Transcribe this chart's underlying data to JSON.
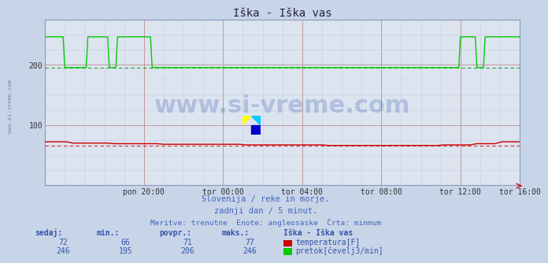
{
  "title": "Iška - Iška vas",
  "bg_color": "#c8d4e8",
  "plot_bg_color": "#dce4f0",
  "temp_color": "#cc0000",
  "flow_color": "#00cc00",
  "min_line_color_flow": "#008800",
  "min_line_color_temp": "#cc0000",
  "x_labels": [
    "pon 20:00",
    "tor 00:00",
    "tor 04:00",
    "tor 08:00",
    "tor 12:00",
    "tor 16:00"
  ],
  "x_tick_pos": [
    0.2083,
    0.375,
    0.5417,
    0.7083,
    0.875,
    1.0
  ],
  "y_ticks": [
    100,
    200
  ],
  "y_min": 0,
  "y_max": 275,
  "watermark_text": "www.si-vreme.com",
  "watermark_color": "#3355aa",
  "watermark_alpha": 0.25,
  "watermark_fontsize": 22,
  "subtitle1": "Slovenija / reke in morje.",
  "subtitle2": "zadnji dan / 5 minut.",
  "subtitle3": "Meritve: trenutne  Enote: angleosaske  Črta: minmum",
  "subtitle_color": "#4466bb",
  "table_color": "#3355aa",
  "left_label": "www.si-vreme.com",
  "grid_major_color": "#c09090",
  "grid_minor_color": "#c8cce0",
  "spine_color": "#8899bb"
}
